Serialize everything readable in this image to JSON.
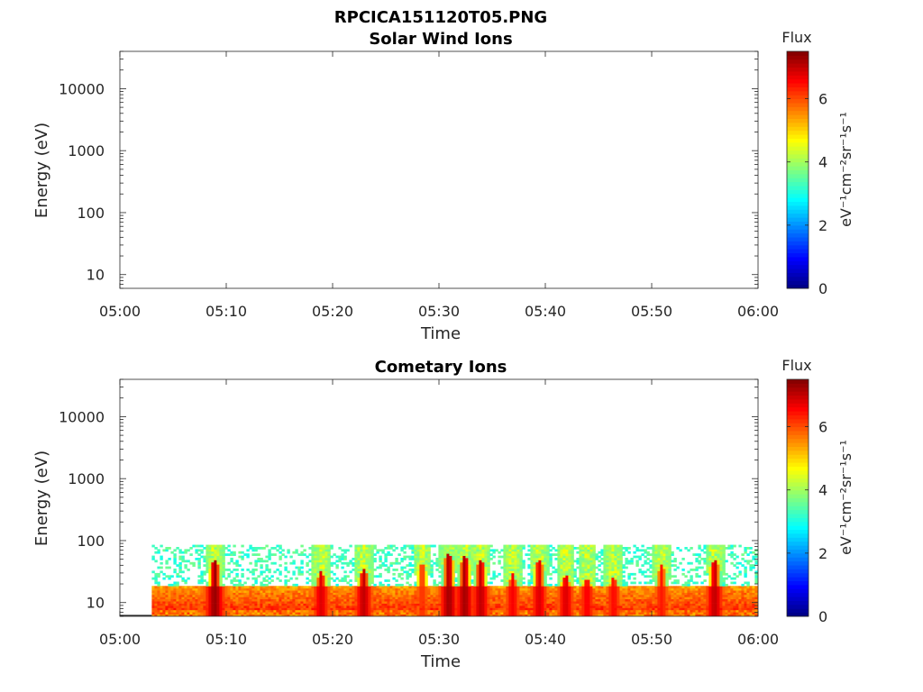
{
  "figure_title": "RPCICA151120T05.PNG",
  "chart_data": [
    {
      "type": "heatmap",
      "title": "Solar Wind Ions",
      "xlabel": "Time",
      "ylabel": "Energy (eV)",
      "xlim": [
        "05:00",
        "06:00"
      ],
      "xticks": [
        "05:00",
        "05:10",
        "05:20",
        "05:30",
        "05:40",
        "05:50",
        "06:00"
      ],
      "yscale": "log",
      "ylim": [
        6,
        40000
      ],
      "yticks": [
        10,
        100,
        1000,
        10000
      ],
      "ytick_labels": [
        "10",
        "100",
        "1000",
        "10000"
      ],
      "colorbar": {
        "label": "Flux",
        "units": "eV⁻¹cm⁻²sr⁻¹s⁻¹",
        "range": [
          0,
          7.5
        ],
        "ticks": [
          "0",
          "2",
          "4",
          "6"
        ],
        "colormap": "jet"
      },
      "data": "empty"
    },
    {
      "type": "heatmap",
      "title": "Cometary Ions",
      "xlabel": "Time",
      "ylabel": "Energy (eV)",
      "xlim": [
        "05:00",
        "06:00"
      ],
      "xticks": [
        "05:00",
        "05:10",
        "05:20",
        "05:30",
        "05:40",
        "05:50",
        "06:00"
      ],
      "yscale": "log",
      "ylim": [
        6,
        40000
      ],
      "yticks": [
        10,
        100,
        1000,
        10000
      ],
      "ytick_labels": [
        "10",
        "100",
        "1000",
        "10000"
      ],
      "colorbar": {
        "label": "Flux",
        "units": "eV⁻¹cm⁻²sr⁻¹s⁻¹",
        "range": [
          0,
          7.5
        ],
        "ticks": [
          "0",
          "2",
          "4",
          "6"
        ],
        "colormap": "jet"
      },
      "data_start_minute": 3,
      "noise_max_energy": 80,
      "band_upper_energy": 18,
      "peaks": [
        {
          "minute": 8.8,
          "energy": 35,
          "flux": 7.3
        },
        {
          "minute": 18.8,
          "energy": 22,
          "flux": 6.8
        },
        {
          "minute": 22.8,
          "energy": 25,
          "flux": 7.0
        },
        {
          "minute": 28.3,
          "energy": 30,
          "flux": 6.2
        },
        {
          "minute": 30.8,
          "energy": 45,
          "flux": 7.2
        },
        {
          "minute": 32.3,
          "energy": 40,
          "flux": 7.2
        },
        {
          "minute": 33.8,
          "energy": 35,
          "flux": 7.0
        },
        {
          "minute": 36.8,
          "energy": 20,
          "flux": 6.6
        },
        {
          "minute": 39.3,
          "energy": 35,
          "flux": 6.8
        },
        {
          "minute": 41.8,
          "energy": 20,
          "flux": 6.8
        },
        {
          "minute": 43.8,
          "energy": 18,
          "flux": 6.6
        },
        {
          "minute": 46.3,
          "energy": 18,
          "flux": 6.5
        },
        {
          "minute": 50.8,
          "energy": 28,
          "flux": 6.4
        },
        {
          "minute": 55.8,
          "energy": 35,
          "flux": 7.0
        }
      ]
    }
  ]
}
